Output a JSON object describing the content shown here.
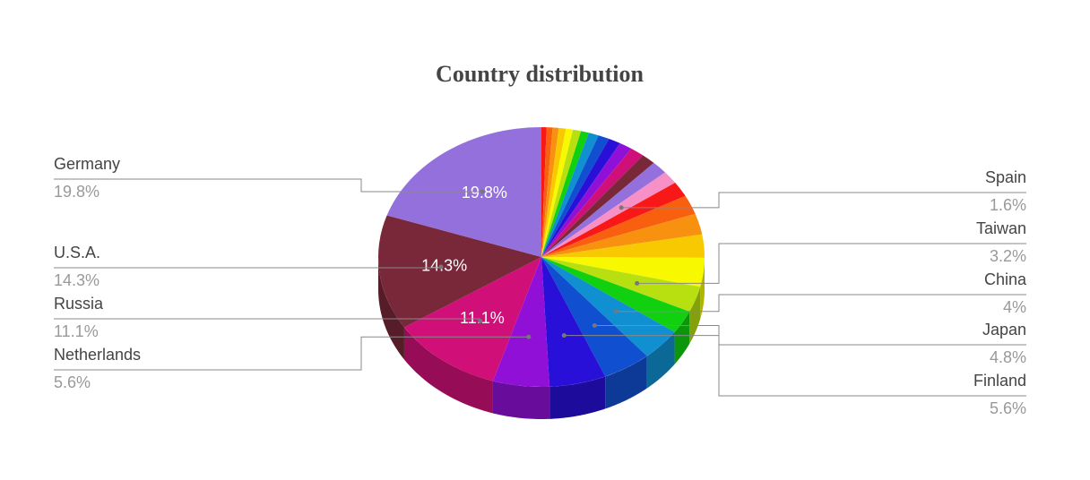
{
  "chart_data": {
    "type": "pie",
    "title": "Country distribution",
    "categories": [
      null,
      null,
      null,
      null,
      null,
      null,
      null,
      null,
      null,
      null,
      null,
      null,
      null,
      null,
      "Spain",
      null,
      null,
      null,
      null,
      null,
      "Taiwan",
      null,
      "China",
      "Japan",
      "Finland",
      "Netherlands",
      "Russia",
      "U.S.A.",
      "Germany"
    ],
    "values": [
      0.5,
      0.6,
      0.6,
      0.7,
      0.7,
      0.8,
      0.8,
      1.0,
      1.1,
      1.2,
      1.3,
      1.4,
      1.4,
      1.6,
      1.6,
      1.9,
      2.4,
      2.6,
      2.9,
      3.6,
      3.2,
      2.9,
      4,
      4.8,
      5.6,
      5.6,
      11.1,
      14.3,
      19.8
    ],
    "value_labels": [
      null,
      null,
      null,
      null,
      null,
      null,
      null,
      null,
      null,
      null,
      null,
      null,
      null,
      null,
      "1.6%",
      null,
      null,
      null,
      null,
      null,
      "3.2%",
      null,
      "4%",
      "4.8%",
      "5.6%",
      "5.6%",
      "11.1%",
      "14.3%",
      "19.8%"
    ],
    "colors": [
      "#f81818",
      "#f86010",
      "#f89010",
      "#f8c800",
      "#f8f800",
      "#b8e010",
      "#10d010",
      "#1090d0",
      "#1050d0",
      "#2810d8",
      "#9010d8",
      "#d01078",
      "#782838",
      "#9370db",
      "#f890c8",
      "#f81818",
      "#f86010",
      "#f89010",
      "#f8c800",
      "#f8f800",
      "#b8e010",
      "#10d010",
      "#1090d0",
      "#1050d0",
      "#2810d8",
      "#9010d8",
      "#d01078",
      "#782838",
      "#9370db"
    ],
    "inside_labels": [
      26,
      27,
      28
    ]
  }
}
